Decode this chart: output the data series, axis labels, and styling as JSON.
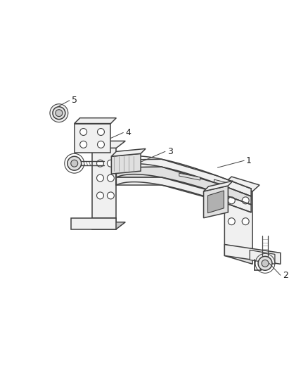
{
  "bg_color": "#ffffff",
  "line_color": "#404040",
  "fill_light": "#f0f0f0",
  "fill_mid": "#e0e0e0",
  "fill_dark": "#c8c8c8",
  "fill_darker": "#b0b0b0",
  "label_color": "#222222",
  "figsize": [
    4.38,
    5.33
  ],
  "dpi": 100
}
